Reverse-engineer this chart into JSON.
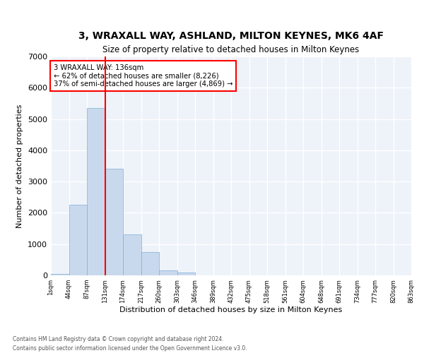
{
  "title": "3, WRAXALL WAY, ASHLAND, MILTON KEYNES, MK6 4AF",
  "subtitle": "Size of property relative to detached houses in Milton Keynes",
  "xlabel": "Distribution of detached houses by size in Milton Keynes",
  "ylabel": "Number of detached properties",
  "bar_color": "#c9d9ed",
  "bar_edge_color": "#7bafd4",
  "bar_values": [
    50,
    2250,
    5350,
    3400,
    1300,
    750,
    150,
    80,
    10,
    0,
    0,
    0,
    0,
    0,
    0,
    0,
    0,
    0,
    0,
    0
  ],
  "bar_labels": [
    "1sqm",
    "44sqm",
    "87sqm",
    "131sqm",
    "174sqm",
    "217sqm",
    "260sqm",
    "303sqm",
    "346sqm",
    "389sqm",
    "432sqm",
    "475sqm",
    "518sqm",
    "561sqm",
    "604sqm",
    "648sqm",
    "691sqm",
    "734sqm",
    "777sqm",
    "820sqm",
    "863sqm"
  ],
  "ylim": [
    0,
    7000
  ],
  "yticks": [
    0,
    1000,
    2000,
    3000,
    4000,
    5000,
    6000,
    7000
  ],
  "vline_x": 3.0,
  "annotation_text": "3 WRAXALL WAY: 136sqm\n← 62% of detached houses are smaller (8,226)\n37% of semi-detached houses are larger (4,869) →",
  "footer_line1": "Contains HM Land Registry data © Crown copyright and database right 2024.",
  "footer_line2": "Contains public sector information licensed under the Open Government Licence v3.0.",
  "background_color": "#eef2f9",
  "grid_color": "#ffffff",
  "fig_bg_color": "#ffffff"
}
